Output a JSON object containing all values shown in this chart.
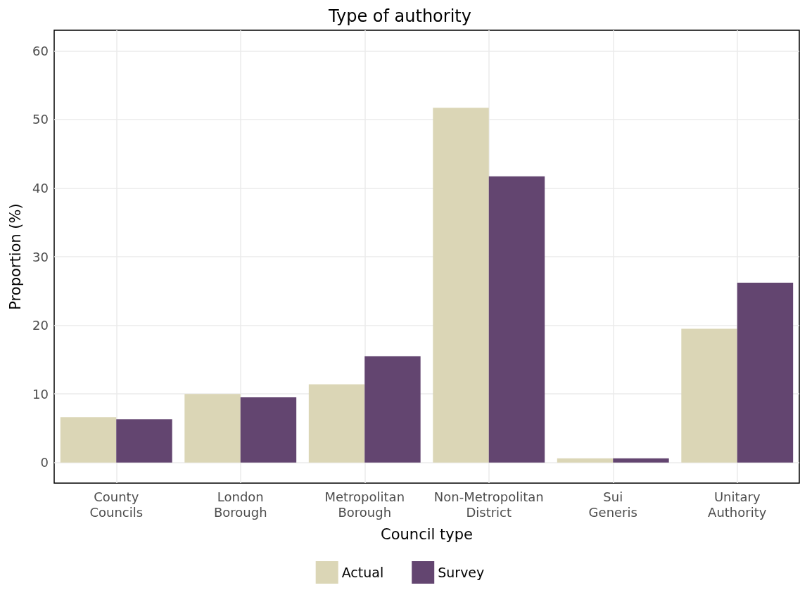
{
  "chart_data": {
    "type": "bar",
    "title": "Type of authority",
    "xlabel": "Council type",
    "ylabel": "Proportion (%)",
    "categories": [
      "County\nCouncils",
      "London\nBorough",
      "Metropolitan\nBorough",
      "Non-Metropolitan\nDistrict",
      "Sui\nGeneris",
      "Unitary\nAuthority"
    ],
    "series": [
      {
        "name": "Actual",
        "color": "#dbd6b6",
        "values": [
          6.6,
          10.0,
          11.4,
          51.7,
          0.6,
          19.5
        ]
      },
      {
        "name": "Survey",
        "color": "#634570",
        "values": [
          6.3,
          9.5,
          15.5,
          41.7,
          0.6,
          26.2
        ]
      }
    ],
    "ylim": [
      -3,
      63
    ],
    "yticks": [
      0,
      10,
      20,
      30,
      40,
      50,
      60
    ],
    "grid": true,
    "legend": "bottom"
  }
}
